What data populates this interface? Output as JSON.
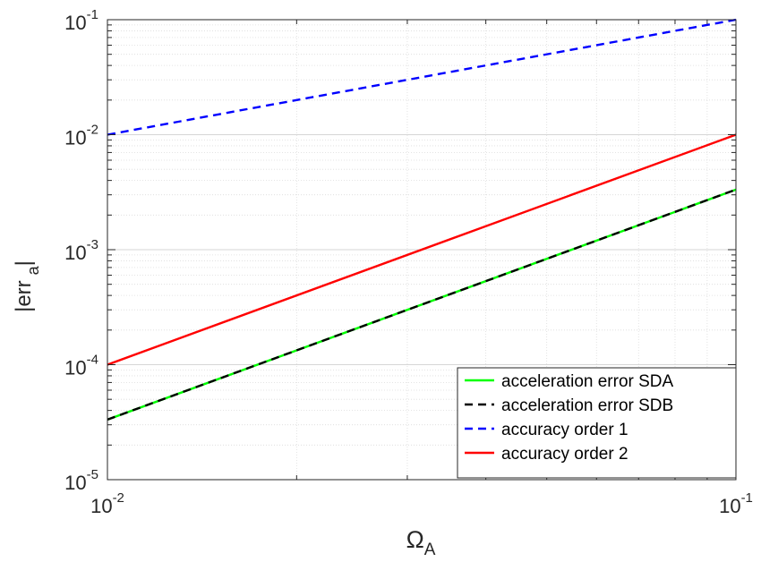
{
  "chart_data": {
    "type": "line",
    "xscale": "log",
    "yscale": "log",
    "xlim": [
      0.01,
      0.1
    ],
    "ylim": [
      1e-05,
      0.1
    ],
    "grid": true,
    "minor_grid": true,
    "legend_position": "bottom-right",
    "xlabel": {
      "base": "Ω",
      "subscript": "A"
    },
    "ylabel": {
      "pre": "|err",
      "subscript": "a",
      "post": "|"
    },
    "x_ticks": [
      {
        "value": 0.01,
        "base": "10",
        "exp": "-2"
      },
      {
        "value": 0.1,
        "base": "10",
        "exp": "-1"
      }
    ],
    "y_ticks": [
      {
        "value": 1e-05,
        "base": "10",
        "exp": "-5"
      },
      {
        "value": 0.0001,
        "base": "10",
        "exp": "-4"
      },
      {
        "value": 0.001,
        "base": "10",
        "exp": "-3"
      },
      {
        "value": 0.01,
        "base": "10",
        "exp": "-2"
      },
      {
        "value": 0.1,
        "base": "10",
        "exp": "-1"
      }
    ],
    "series": [
      {
        "name": "acceleration error SDA",
        "color": "#00ff00",
        "style": "solid",
        "x": [
          0.01,
          0.1
        ],
        "y": [
          3.33e-05,
          0.00333
        ]
      },
      {
        "name": "acceleration error SDB",
        "color": "#000000",
        "style": "dashed",
        "x": [
          0.01,
          0.1
        ],
        "y": [
          3.33e-05,
          0.00333
        ]
      },
      {
        "name": "accuracy order 1",
        "color": "#0000ff",
        "style": "dashed",
        "x": [
          0.01,
          0.1
        ],
        "y": [
          0.01,
          0.1
        ]
      },
      {
        "name": "accuracy order 2",
        "color": "#ff0000",
        "style": "solid",
        "x": [
          0.01,
          0.1
        ],
        "y": [
          0.0001,
          0.01
        ]
      }
    ]
  }
}
